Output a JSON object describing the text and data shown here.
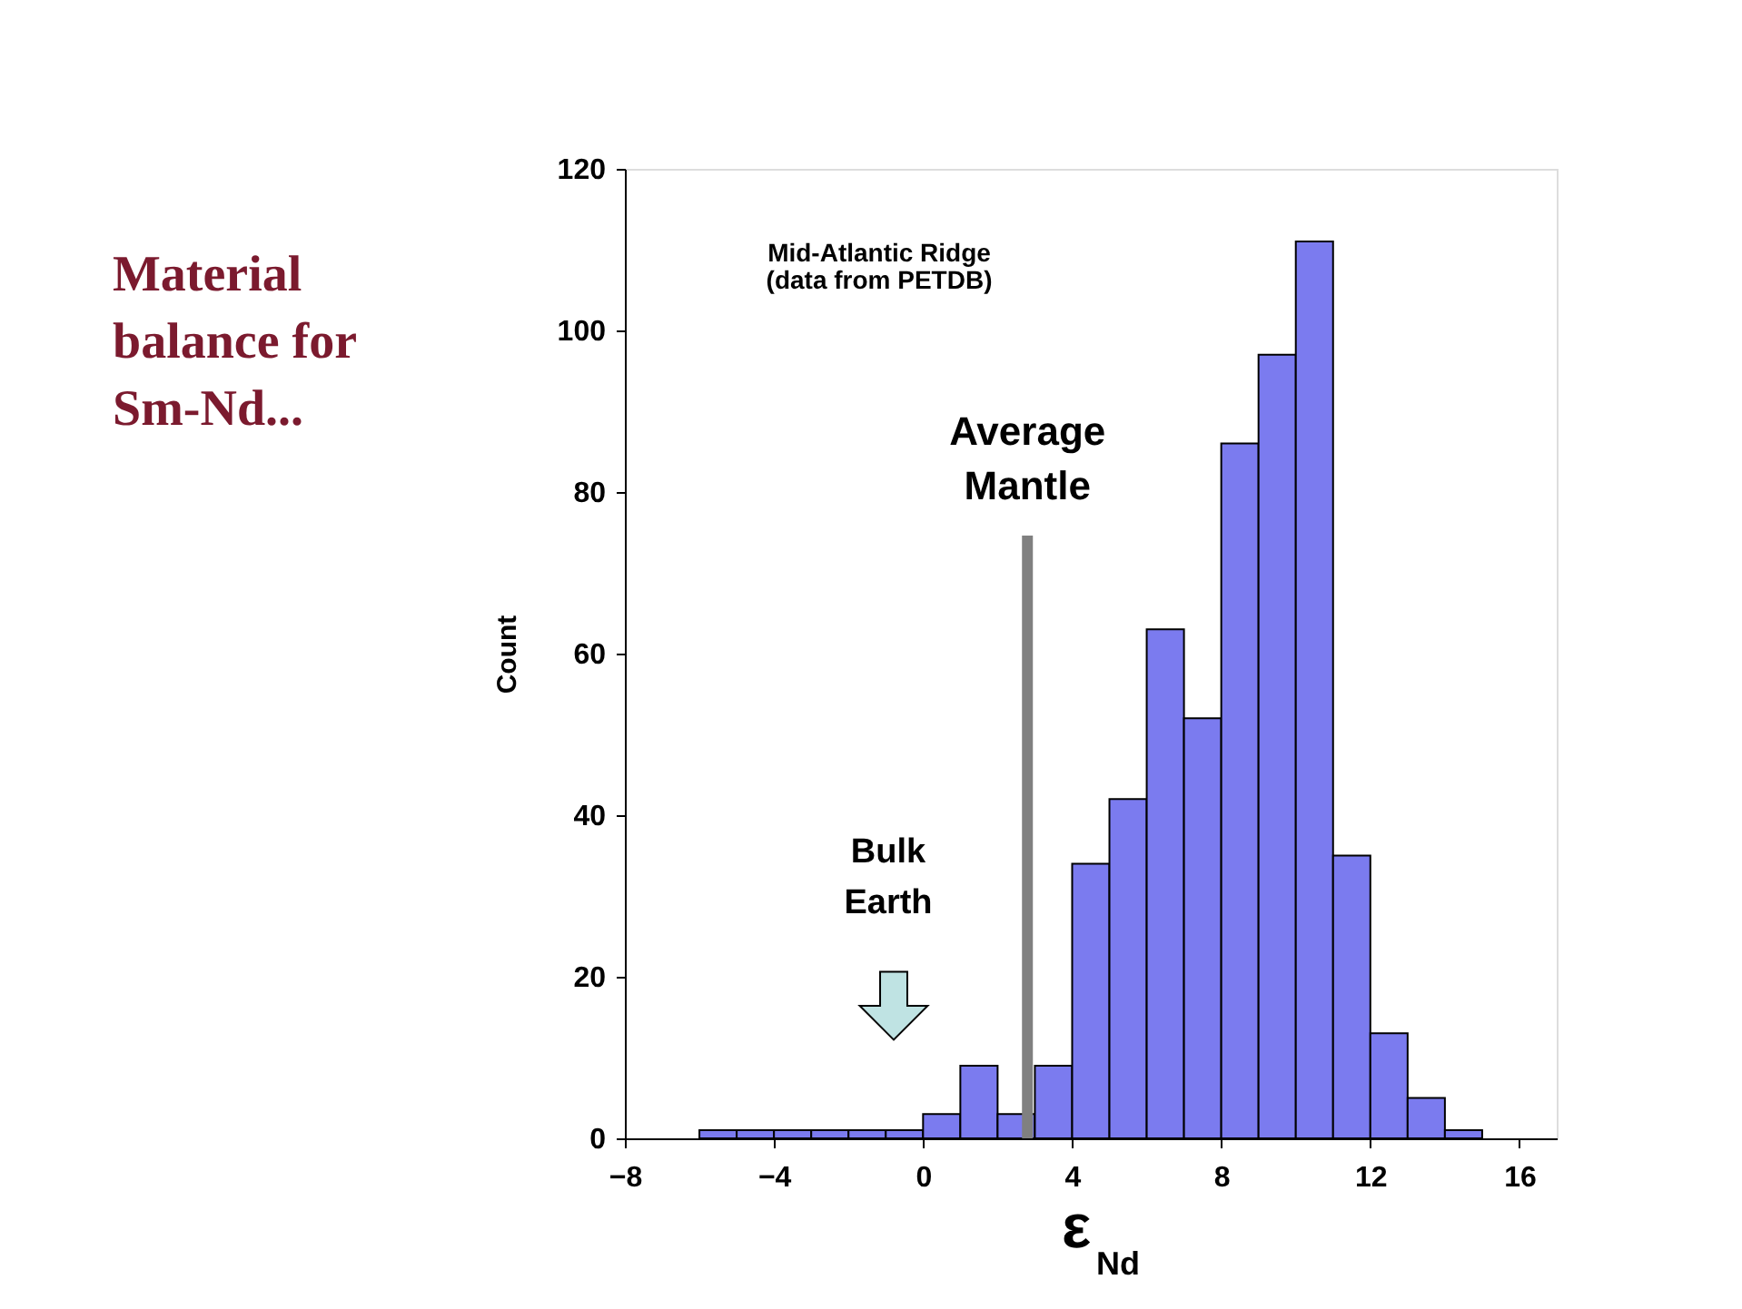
{
  "chart_data": {
    "type": "histogram",
    "title": "Material balance for Sm-Nd...",
    "xlabel": "ε$_{Nd}$",
    "ylabel": "Count",
    "bins": [
      -6,
      -5,
      -4,
      -3,
      -2,
      -1,
      0,
      1,
      2,
      3,
      4,
      5,
      6,
      7,
      8,
      9,
      10,
      11,
      12,
      13,
      14,
      15
    ],
    "values": [
      1,
      1,
      1,
      1,
      1,
      1,
      3,
      9,
      3,
      9,
      34,
      42,
      63,
      52,
      86,
      97,
      111,
      35,
      13,
      5,
      1
    ],
    "color": "#7b7bef",
    "xlim": [
      -8,
      17
    ],
    "xticks": [
      -8,
      -4,
      0,
      4,
      8,
      12,
      16
    ],
    "ylim": [
      0,
      120
    ],
    "yticks": [
      0,
      20,
      40,
      60,
      80,
      100,
      120
    ],
    "grid": false,
    "ref_lines": [
      {
        "axis": "x",
        "value": 2.8,
        "label": "Average Mantle",
        "color": "#808080",
        "line_style": "solid"
      }
    ],
    "annotations": [
      "Mid-Atlantic Ridge\n(data from PETDB)",
      "Bulk Earth"
    ]
  }
}
